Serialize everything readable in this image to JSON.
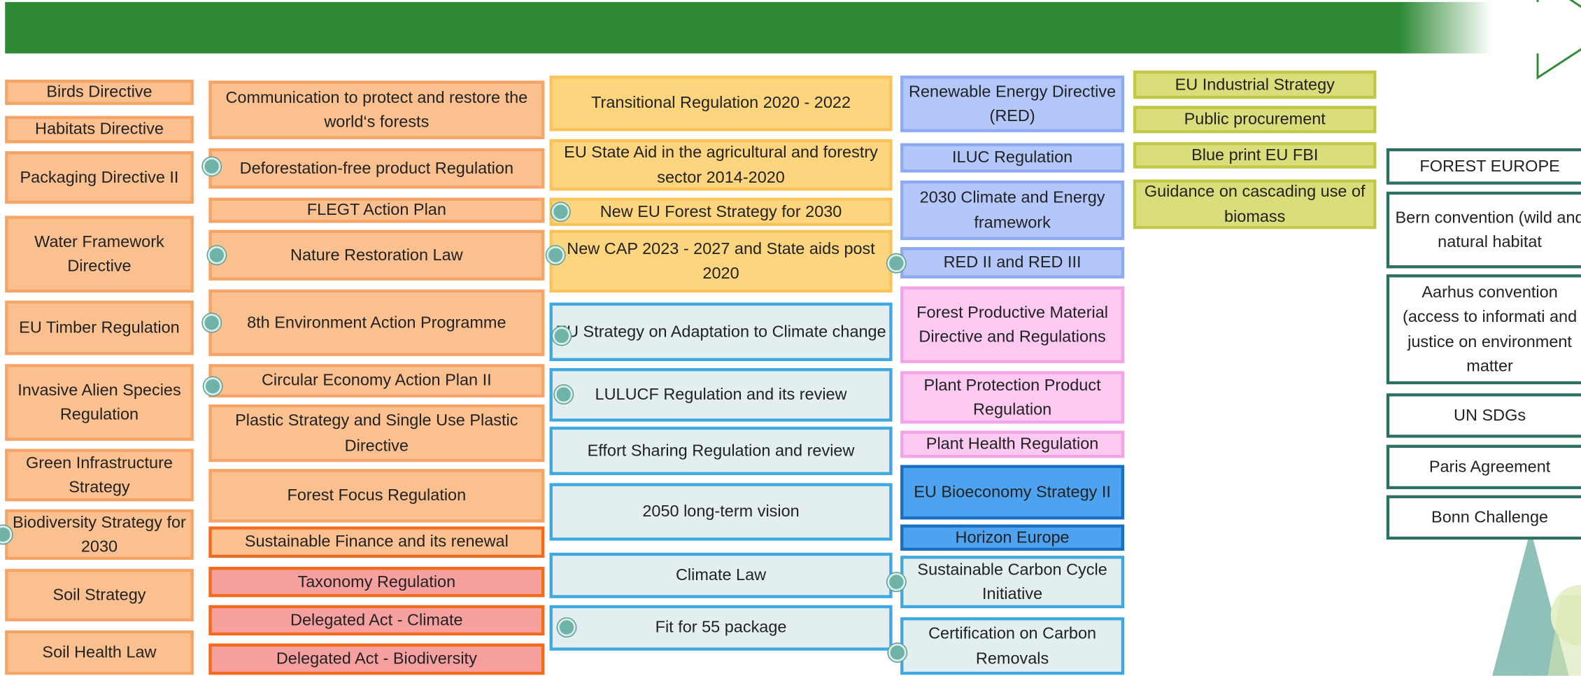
{
  "columns": [
    [
      "Birds Directive",
      "Habitats Directive",
      "Packaging Directive II",
      "Water Framework Directive",
      "EU Timber Regulation",
      "Invasive Alien Species Regulation",
      "Green Infrastructure Strategy",
      "Biodiversity Strategy for 2030",
      "Soil Strategy",
      "Soil Health Law"
    ],
    [
      "Communication to protect and restore the world‘s forests",
      "Deforestation-free product Regulation",
      "FLEGT Action Plan",
      "Nature Restoration Law",
      "8th Environment Action Programme",
      "Circular Economy Action Plan II",
      "Plastic Strategy and Single Use Plastic Directive",
      "Forest Focus Regulation",
      "Sustainable Finance and its renewal",
      "Taxonomy Regulation",
      "Delegated Act - Climate",
      "Delegated Act - Biodiversity"
    ],
    [
      "Transitional Regulation 2020 - 2022",
      "EU State Aid in the agricultural and forestry sector 2014-2020",
      "New EU Forest Strategy for 2030",
      "New CAP 2023 - 2027  and State aids post 2020",
      "EU Strategy on Adaptation to Climate change",
      "LULUCF Regulation and its review",
      "Effort Sharing Regulation and review",
      "2050 long-term vision",
      "Climate Law",
      "Fit for 55 package"
    ],
    [
      "Renewable Energy Directive (RED)",
      "ILUC Regulation",
      "2030 Climate and Energy framework",
      "RED II and RED III",
      "Forest Productive Material Directive and Regulations",
      "Plant Protection Product Regulation",
      "Plant Health Regulation",
      "EU Bioeconomy Strategy II",
      "Horizon Europe",
      "Sustainable Carbon Cycle Initiative",
      "Certification on Carbon Removals"
    ],
    [
      "EU Industrial Strategy",
      "Public procurement",
      "Blue print EU FBI",
      "Guidance on cascading use of biomass"
    ],
    [
      "FOREST EUROPE",
      "Bern convention (wild and natural habitat",
      "Aarhus convention (access to informati and justice on environment matter",
      "UN SDGs",
      "Paris Agreement",
      "Bonn Challenge"
    ]
  ]
}
